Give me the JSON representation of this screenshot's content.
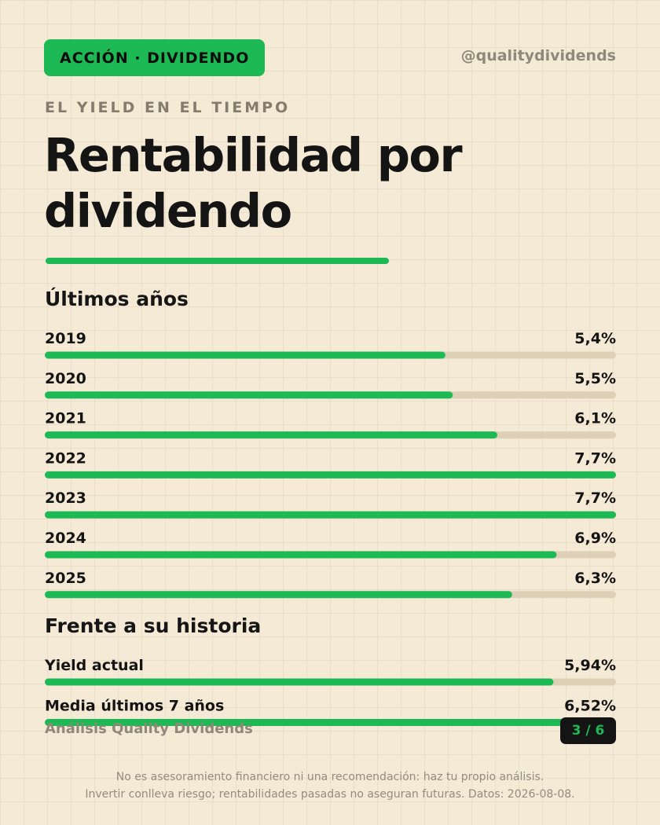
{
  "header": {
    "badge": "ACCIÓN · DIVIDENDO",
    "handle": "@qualitydividends",
    "eyebrow": "EL YIELD EN EL TIEMPO",
    "title": "Rentabilidad por dividendo"
  },
  "sections": {
    "recent_years": "Últimos años",
    "vs_history": "Frente a su historia"
  },
  "chart_data": [
    {
      "type": "bar",
      "orientation": "horizontal",
      "title": "Últimos años",
      "categories": [
        "2019",
        "2020",
        "2021",
        "2022",
        "2023",
        "2024",
        "2025"
      ],
      "values": [
        5.4,
        5.5,
        6.1,
        7.7,
        7.7,
        6.9,
        6.3
      ],
      "value_labels": [
        "5,4%",
        "5,5%",
        "6,1%",
        "7,7%",
        "7,7%",
        "6,9%",
        "6,3%"
      ],
      "xlim": [
        0,
        7.7
      ],
      "unit": "%"
    },
    {
      "type": "bar",
      "orientation": "horizontal",
      "title": "Frente a su historia",
      "categories": [
        "Yield actual",
        "Media últimos 7 años"
      ],
      "values": [
        5.94,
        6.52
      ],
      "value_labels": [
        "5,94%",
        "6,52%"
      ],
      "xlim": [
        0,
        6.67
      ],
      "unit": "%"
    }
  ],
  "colors": {
    "accent": "#1db954",
    "track": "#ddd0b6",
    "background": "#f5ead6",
    "text": "#141414"
  },
  "footer": {
    "credit": "Análisis Quality Dividends",
    "page": "3 / 6",
    "disclaimer_1": "No es asesoramiento financiero ni una recomendación: haz tu propio análisis.",
    "disclaimer_2": "Invertir conlleva riesgo; rentabilidades pasadas no aseguran futuras. Datos: 2026-08-08."
  }
}
